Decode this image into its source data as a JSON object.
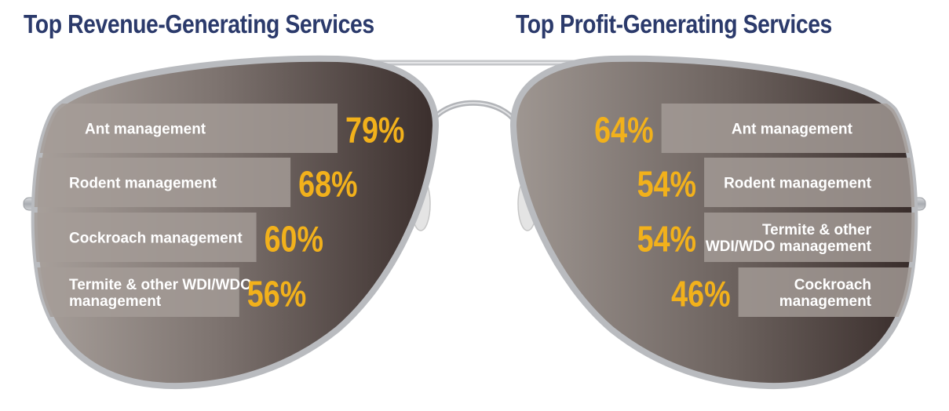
{
  "colors": {
    "title": "#2b3a6b",
    "value": "#f2b11b",
    "bar": "#a59c97",
    "label": "#ffffff",
    "lens_light": "#9b928d",
    "lens_dark": "#3b2e2c",
    "frame": "#b7b9bd"
  },
  "chart_data": [
    {
      "type": "bar",
      "orientation": "horizontal",
      "title": "Top Revenue-Generating Services",
      "categories": [
        "Ant management",
        "Rodent management",
        "Cockroach management",
        "Termite & other WDI/WDO management"
      ],
      "values": [
        79,
        68,
        60,
        56
      ],
      "value_labels": [
        "79%",
        "68%",
        "60%",
        "56%"
      ],
      "unit": "%",
      "xlim": [
        0,
        100
      ],
      "direction": "left-to-right"
    },
    {
      "type": "bar",
      "orientation": "horizontal",
      "title": "Top Profit-Generating Services",
      "categories": [
        "Ant management",
        "Rodent management",
        "Termite & other WDI/WDO management",
        "Cockroach management"
      ],
      "values": [
        64,
        54,
        54,
        46
      ],
      "value_labels": [
        "64%",
        "54%",
        "54%",
        "46%"
      ],
      "unit": "%",
      "xlim": [
        0,
        100
      ],
      "direction": "right-to-left"
    }
  ]
}
